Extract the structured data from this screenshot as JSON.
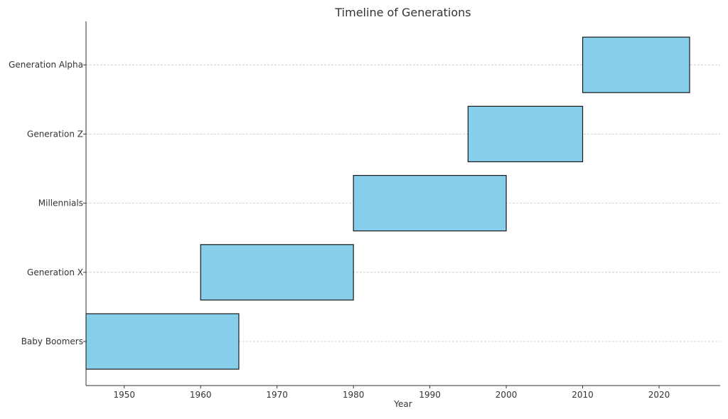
{
  "chart_data": {
    "type": "bar",
    "orientation": "horizontal",
    "title": "Timeline of Generations",
    "xlabel": "Year",
    "ylabel": "",
    "xlim": [
      1945,
      2028
    ],
    "xticks": [
      1950,
      1960,
      1970,
      1980,
      1990,
      2000,
      2010,
      2020
    ],
    "categories": [
      "Baby Boomers",
      "Generation X",
      "Millennials",
      "Generation Z",
      "Generation Alpha"
    ],
    "series": [
      {
        "values": [
          {
            "category": "Baby Boomers",
            "start": 1945,
            "end": 1965
          },
          {
            "category": "Generation X",
            "start": 1960,
            "end": 1980
          },
          {
            "category": "Millennials",
            "start": 1980,
            "end": 2000
          },
          {
            "category": "Generation Z",
            "start": 1995,
            "end": 2010
          },
          {
            "category": "Generation Alpha",
            "start": 2010,
            "end": 2024
          }
        ]
      }
    ],
    "colors": {
      "bar_fill": "#87CEEB",
      "bar_edge": "#1a1a1a",
      "grid": "#c8c8c8",
      "axis": "#333333"
    },
    "grid": "horizontal-dashed",
    "legend": "none"
  }
}
